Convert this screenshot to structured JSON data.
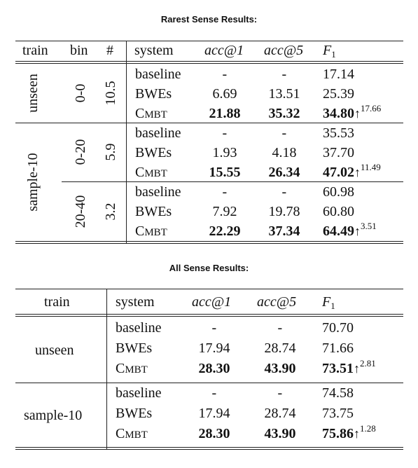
{
  "table1": {
    "caption": "Rarest Sense Results:",
    "headers": {
      "train": "train",
      "bin": "bin",
      "num": "#",
      "system": "system",
      "acc1": "acc@1",
      "acc5": "acc@5",
      "f": "F",
      "f_sub": "1"
    },
    "groups": [
      {
        "train": "unseen",
        "bins": [
          {
            "bin": "0-0",
            "count": "10.5",
            "rows": [
              {
                "system": "baseline",
                "acc1": "-",
                "acc5": "-",
                "f1": "17.14",
                "delta": ""
              },
              {
                "system": "BWEs",
                "acc1": "6.69",
                "acc5": "13.51",
                "f1": "25.39",
                "delta": ""
              },
              {
                "system": "CMBT",
                "acc1": "21.88",
                "acc5": "35.32",
                "f1": "34.80",
                "delta": "17.66"
              }
            ]
          }
        ]
      },
      {
        "train": "sample-10",
        "bins": [
          {
            "bin": "0-20",
            "count": "5.9",
            "rows": [
              {
                "system": "baseline",
                "acc1": "-",
                "acc5": "-",
                "f1": "35.53",
                "delta": ""
              },
              {
                "system": "BWEs",
                "acc1": "1.93",
                "acc5": "4.18",
                "f1": "37.70",
                "delta": ""
              },
              {
                "system": "CMBT",
                "acc1": "15.55",
                "acc5": "26.34",
                "f1": "47.02",
                "delta": "11.49"
              }
            ]
          },
          {
            "bin": "20-40",
            "count": "3.2",
            "rows": [
              {
                "system": "baseline",
                "acc1": "-",
                "acc5": "-",
                "f1": "60.98",
                "delta": ""
              },
              {
                "system": "BWEs",
                "acc1": "7.92",
                "acc5": "19.78",
                "f1": "60.80",
                "delta": ""
              },
              {
                "system": "CMBT",
                "acc1": "22.29",
                "acc5": "37.34",
                "f1": "64.49",
                "delta": "3.51"
              }
            ]
          }
        ]
      }
    ]
  },
  "table2": {
    "caption": "All Sense Results:",
    "headers": {
      "train": "train",
      "system": "system",
      "acc1": "acc@1",
      "acc5": "acc@5",
      "f": "F",
      "f_sub": "1"
    },
    "groups": [
      {
        "train": "unseen",
        "rows": [
          {
            "system": "baseline",
            "acc1": "-",
            "acc5": "-",
            "f1": "70.70",
            "delta": ""
          },
          {
            "system": "BWEs",
            "acc1": "17.94",
            "acc5": "28.74",
            "f1": "71.66",
            "delta": ""
          },
          {
            "system": "CMBT",
            "acc1": "28.30",
            "acc5": "43.90",
            "f1": "73.51",
            "delta": "2.81"
          }
        ]
      },
      {
        "train": "sample-10",
        "rows": [
          {
            "system": "baseline",
            "acc1": "-",
            "acc5": "-",
            "f1": "74.58",
            "delta": ""
          },
          {
            "system": "BWEs",
            "acc1": "17.94",
            "acc5": "28.74",
            "f1": "73.75",
            "delta": ""
          },
          {
            "system": "CMBT",
            "acc1": "28.30",
            "acc5": "43.90",
            "f1": "75.86",
            "delta": "1.28"
          }
        ]
      }
    ],
    "arrow_symbol": "↑"
  }
}
